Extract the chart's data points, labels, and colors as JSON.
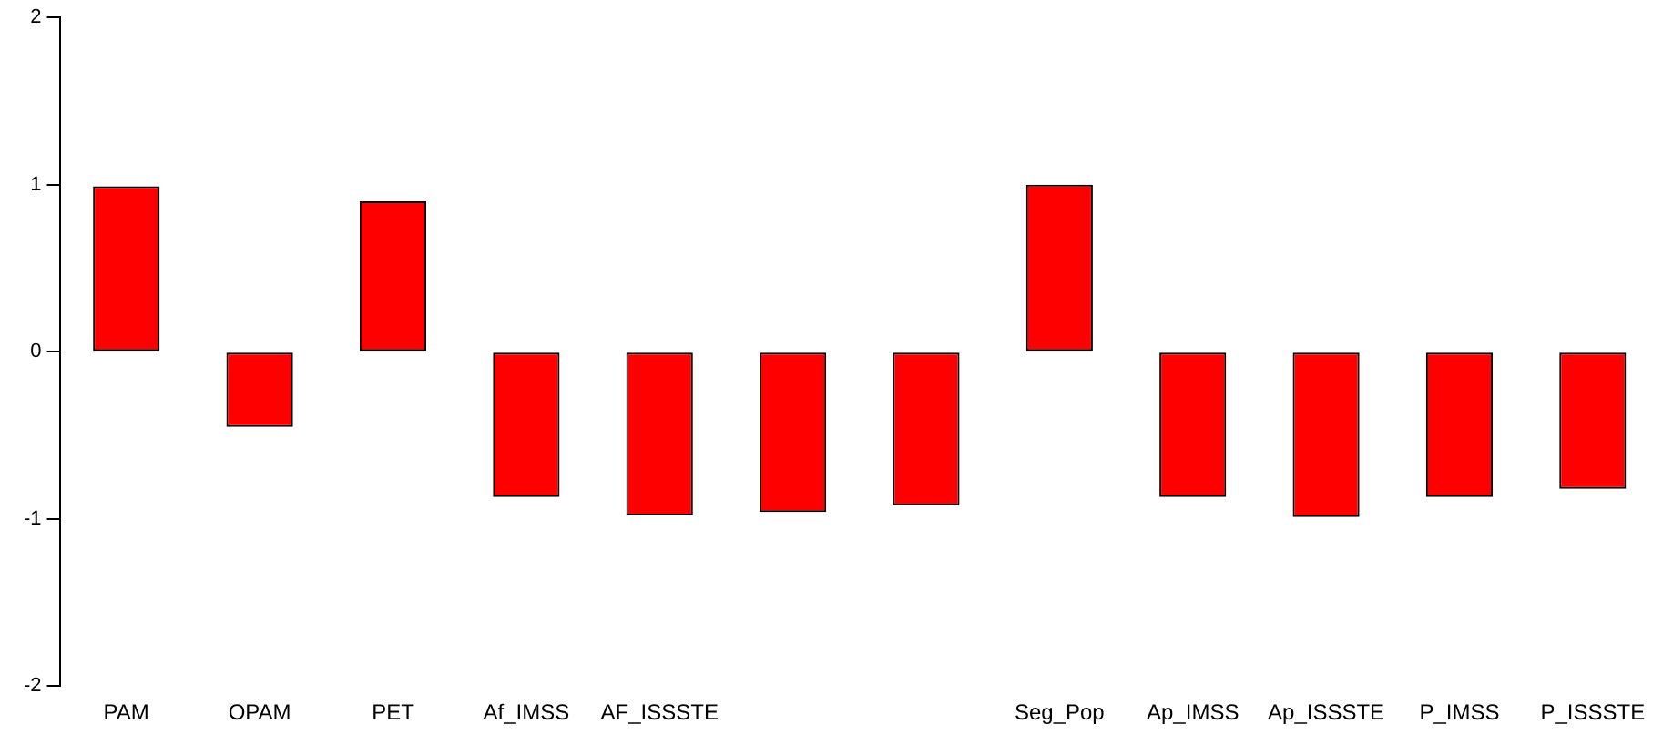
{
  "chart_data": {
    "type": "bar",
    "categories": [
      "PAM",
      "OPAM",
      "PET",
      "Af_IMSS",
      "AF_ISSSTE",
      null,
      null,
      "Seg_Pop",
      "Ap_IMSS",
      "Ap_ISSSTE",
      "P_IMSS",
      "P_ISSSTE"
    ],
    "values": [
      0.99,
      -0.45,
      0.9,
      -0.87,
      -0.98,
      -0.96,
      -0.92,
      1.0,
      -0.87,
      -0.99,
      -0.87,
      -0.82
    ],
    "color": "#ff0000",
    "ylim": [
      -2,
      2
    ],
    "yticks": [
      -2,
      -1,
      0,
      1,
      2
    ],
    "grid": false,
    "legend": false
  }
}
